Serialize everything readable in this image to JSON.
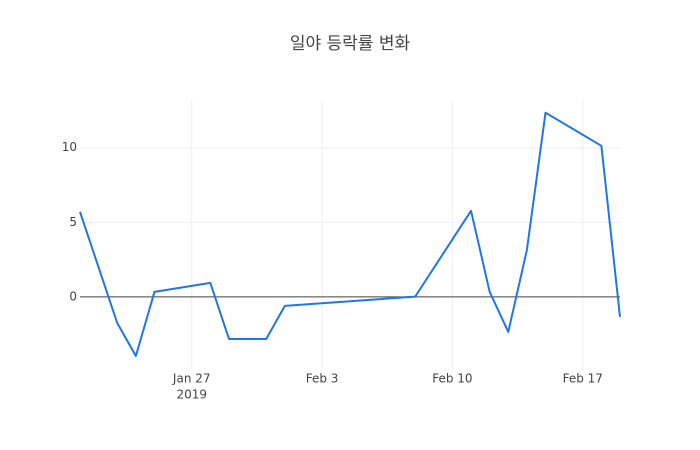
{
  "chart_data": {
    "type": "line",
    "title": "일야 등락률 변화",
    "x": [
      "2019-01-21",
      "2019-01-23",
      "2019-01-24",
      "2019-01-25",
      "2019-01-28",
      "2019-01-29",
      "2019-01-31",
      "2019-02-01",
      "2019-02-08",
      "2019-02-11",
      "2019-02-12",
      "2019-02-13",
      "2019-02-14",
      "2019-02-15",
      "2019-02-18",
      "2019-02-19"
    ],
    "series": [
      {
        "color": "#1f77e4",
        "values": [
          5.7,
          -1.75,
          -3.96,
          0.34,
          0.94,
          -2.82,
          -2.82,
          -0.6,
          0.02,
          5.77,
          0.34,
          -2.35,
          3.15,
          12.35,
          10.13,
          -1.34
        ]
      }
    ],
    "xlim": [
      "2019-01-21",
      "2019-02-19"
    ],
    "xticks": [
      {
        "value": "2019-01-27",
        "label": "Jan 27"
      },
      {
        "value": "2019-02-03",
        "label": "Feb 3"
      },
      {
        "value": "2019-02-10",
        "label": "Feb 10"
      },
      {
        "value": "2019-02-17",
        "label": "Feb 17"
      }
    ],
    "x_year_label": "2019",
    "ylim": [
      -4.9,
      13.2
    ],
    "yticks": [
      0,
      5,
      10
    ],
    "grid": true,
    "zeroline": true
  }
}
